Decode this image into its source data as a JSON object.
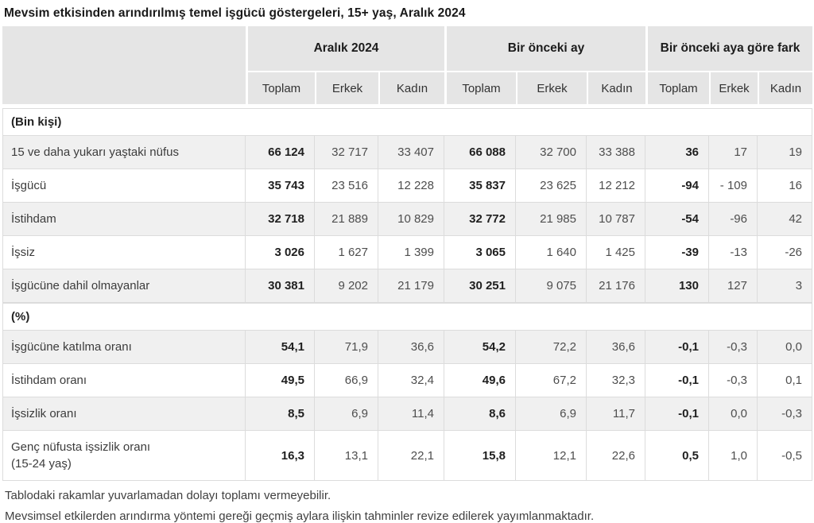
{
  "title": "Mevsim etkisinden arındırılmış temel işgücü göstergeleri, 15+ yaş, Aralık 2024",
  "colors": {
    "header_bg": "#e5e5e5",
    "row_alt_bg": "#f0f0f0",
    "border": "#dcdcdc"
  },
  "table": {
    "column_groups": [
      {
        "label": "Aralık 2024"
      },
      {
        "label": "Bir önceki ay"
      },
      {
        "label": "Bir önceki aya göre fark"
      }
    ],
    "sub_headers": [
      "Toplam",
      "Erkek",
      "Kadın",
      "Toplam",
      "Erkek",
      "Kadın",
      "Toplam",
      "Erkek",
      "Kadın"
    ],
    "sections": [
      {
        "label": "(Bin kişi)",
        "rows": [
          {
            "label": "15 ve daha yukarı yaştaki nüfus",
            "values": [
              "66 124",
              "32 717",
              "33 407",
              "66 088",
              "32 700",
              "33 388",
              "36",
              "17",
              "19"
            ]
          },
          {
            "label": "İşgücü",
            "values": [
              "35 743",
              "23 516",
              "12 228",
              "35 837",
              "23 625",
              "12 212",
              "-94",
              "- 109",
              "16"
            ]
          },
          {
            "label": "İstihdam",
            "values": [
              "32 718",
              "21 889",
              "10 829",
              "32 772",
              "21 985",
              "10 787",
              "-54",
              "-96",
              "42"
            ]
          },
          {
            "label": "İşsiz",
            "values": [
              "3 026",
              "1 627",
              "1 399",
              "3 065",
              "1 640",
              "1 425",
              "-39",
              "-13",
              "-26"
            ]
          },
          {
            "label": "İşgücüne dahil olmayanlar",
            "values": [
              "30 381",
              "9 202",
              "21 179",
              "30 251",
              "9 075",
              "21 176",
              "130",
              "127",
              "3"
            ]
          }
        ]
      },
      {
        "label": "(%)",
        "rows": [
          {
            "label": "İşgücüne katılma oranı",
            "values": [
              "54,1",
              "71,9",
              "36,6",
              "54,2",
              "72,2",
              "36,6",
              "-0,1",
              "-0,3",
              "0,0"
            ]
          },
          {
            "label": "İstihdam oranı",
            "values": [
              "49,5",
              "66,9",
              "32,4",
              "49,6",
              "67,2",
              "32,3",
              "-0,1",
              "-0,3",
              "0,1"
            ]
          },
          {
            "label": "İşsizlik oranı",
            "values": [
              "8,5",
              "6,9",
              "11,4",
              "8,6",
              "6,9",
              "11,7",
              "-0,1",
              "0,0",
              "-0,3"
            ]
          },
          {
            "label": "Genç nüfusta işsizlik oranı\n(15-24 yaş)",
            "values": [
              "16,3",
              "13,1",
              "22,1",
              "15,8",
              "12,1",
              "22,6",
              "0,5",
              "1,0",
              "-0,5"
            ]
          }
        ]
      }
    ]
  },
  "footnotes": [
    "Tablodaki rakamlar yuvarlamadan dolayı toplamı vermeyebilir.",
    "Mevsimsel etkilerden arındırma yöntemi gereği geçmiş aylara ilişkin tahminler revize edilerek yayımlanmaktadır."
  ]
}
